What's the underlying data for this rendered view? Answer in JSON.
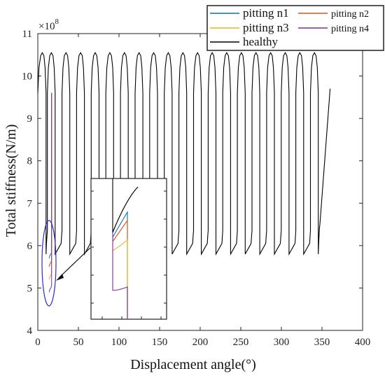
{
  "chart_data": {
    "type": "line",
    "xlabel": "Displacement angle(°)",
    "ylabel": "Total stiffness(N/m)",
    "y_multiplier": "×10",
    "y_multiplier_exp": "8",
    "xlim": [
      0,
      400
    ],
    "ylim": [
      4,
      11
    ],
    "xticks": [
      0,
      50,
      100,
      150,
      200,
      250,
      300,
      350,
      400
    ],
    "yticks": [
      4,
      5,
      6,
      7,
      8,
      9,
      10,
      11
    ],
    "grid": false,
    "legend_position": "top-right",
    "mesh_period_deg": 18,
    "mesh_cycles": 20,
    "stiffness_peak": 10.55,
    "stiffness_valley": 5.8,
    "end_point": [
      360,
      9.7
    ],
    "series": [
      {
        "name": "pitting n1",
        "color": "#0072BD",
        "pitted_min": 5.7
      },
      {
        "name": "pitting n2",
        "color": "#D95319",
        "pitted_min": 5.5
      },
      {
        "name": "pitting n3",
        "color": "#EDB120",
        "pitted_min": 5.2
      },
      {
        "name": "pitting n4",
        "color": "#7E2F8E",
        "pitted_min": 4.9
      },
      {
        "name": "healthy",
        "color": "#000000",
        "pitted_min": 5.8
      }
    ],
    "annotation": "zoomed inset of pitting region near 10–18°",
    "inset_xlim": [
      13,
      18
    ],
    "inset_ylim": [
      4.6,
      6.6
    ]
  }
}
